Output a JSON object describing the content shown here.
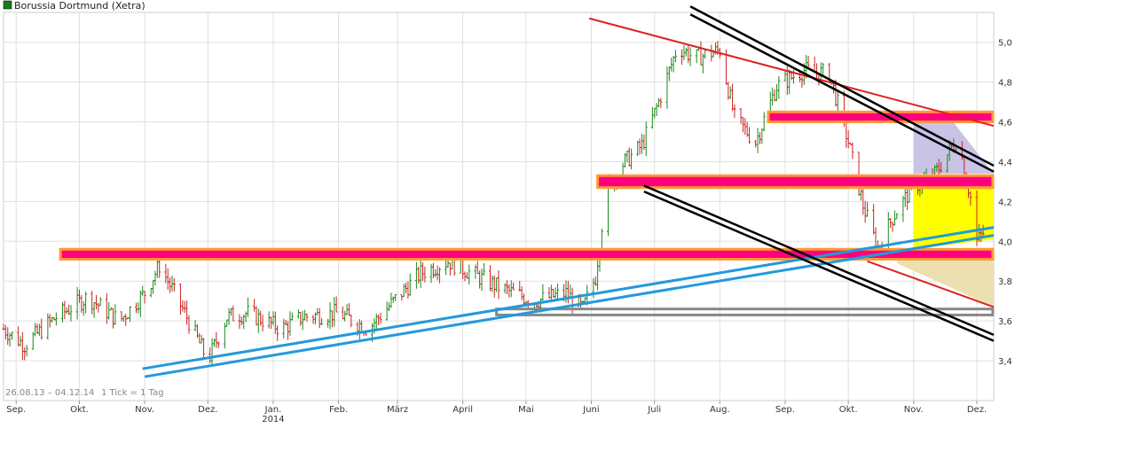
{
  "chart_data": {
    "type": "candlestick",
    "title": "",
    "legend": {
      "label": "Borussia Dortmund (Xetra)",
      "color": "#1a7a1a",
      "placement": "top-left"
    },
    "footer": {
      "range": "26.08.13 – 04.12.14",
      "tick_info": "1 Tick = 1 Tag"
    },
    "grid": true,
    "yaxis": {
      "side": "right",
      "ticks": [
        3.4,
        3.6,
        3.8,
        4.0,
        4.2,
        4.4,
        4.6,
        4.8,
        5.0
      ],
      "tick_labels": [
        "3,4",
        "3,6",
        "3,8",
        "4,0",
        "4,2",
        "4,4",
        "4,6",
        "4,8",
        "5,0"
      ],
      "ylim": [
        3.2,
        5.15
      ]
    },
    "xaxis": {
      "xlim": [
        "2013-08-26",
        "2014-12-09"
      ],
      "ticks": [
        {
          "date": "2013-09-01",
          "label": "Sep."
        },
        {
          "date": "2013-10-01",
          "label": "Okt."
        },
        {
          "date": "2013-11-01",
          "label": "Nov."
        },
        {
          "date": "2013-12-01",
          "label": "Dez."
        },
        {
          "date": "2014-01-01",
          "label": "Jan.",
          "sublabel": "2014"
        },
        {
          "date": "2014-02-01",
          "label": "Feb."
        },
        {
          "date": "2014-03-01",
          "label": "März"
        },
        {
          "date": "2014-04-01",
          "label": "April"
        },
        {
          "date": "2014-05-01",
          "label": "Mai"
        },
        {
          "date": "2014-06-01",
          "label": "Juni"
        },
        {
          "date": "2014-07-01",
          "label": "Juli"
        },
        {
          "date": "2014-08-01",
          "label": "Aug."
        },
        {
          "date": "2014-09-01",
          "label": "Sep."
        },
        {
          "date": "2014-10-01",
          "label": "Okt."
        },
        {
          "date": "2014-11-01",
          "label": "Nov."
        },
        {
          "date": "2014-12-01",
          "label": "Dez."
        }
      ]
    },
    "colors": {
      "up": "#1a8a1a",
      "down": "#cc2222",
      "grid": "#e0e0e0"
    },
    "price_path": [
      [
        "2013-08-26",
        3.56
      ],
      [
        "2013-09-05",
        3.48
      ],
      [
        "2013-09-20",
        3.62
      ],
      [
        "2013-10-05",
        3.72
      ],
      [
        "2013-10-20",
        3.6
      ],
      [
        "2013-11-01",
        3.74
      ],
      [
        "2013-11-08",
        3.88
      ],
      [
        "2013-11-20",
        3.64
      ],
      [
        "2013-12-01",
        3.4
      ],
      [
        "2013-12-10",
        3.62
      ],
      [
        "2013-12-20",
        3.64
      ],
      [
        "2014-01-05",
        3.56
      ],
      [
        "2014-01-15",
        3.62
      ],
      [
        "2014-02-01",
        3.64
      ],
      [
        "2014-02-15",
        3.56
      ],
      [
        "2014-03-01",
        3.72
      ],
      [
        "2014-03-12",
        3.84
      ],
      [
        "2014-03-25",
        3.9
      ],
      [
        "2014-04-05",
        3.84
      ],
      [
        "2014-04-20",
        3.76
      ],
      [
        "2014-05-05",
        3.7
      ],
      [
        "2014-05-20",
        3.74
      ],
      [
        "2014-05-28",
        3.66
      ],
      [
        "2014-06-03",
        3.82
      ],
      [
        "2014-06-08",
        4.26
      ],
      [
        "2014-06-15",
        4.38
      ],
      [
        "2014-06-25",
        4.48
      ],
      [
        "2014-07-03",
        4.7
      ],
      [
        "2014-07-12",
        4.98
      ],
      [
        "2014-07-20",
        4.92
      ],
      [
        "2014-08-01",
        4.96
      ],
      [
        "2014-08-08",
        4.62
      ],
      [
        "2014-08-18",
        4.5
      ],
      [
        "2014-08-28",
        4.78
      ],
      [
        "2014-09-10",
        4.86
      ],
      [
        "2014-09-22",
        4.84
      ],
      [
        "2014-10-01",
        4.5
      ],
      [
        "2014-10-08",
        4.18
      ],
      [
        "2014-10-15",
        3.96
      ],
      [
        "2014-10-22",
        4.12
      ],
      [
        "2014-11-01",
        4.28
      ],
      [
        "2014-11-10",
        4.32
      ],
      [
        "2014-11-22",
        4.52
      ],
      [
        "2014-11-28",
        4.22
      ],
      [
        "2014-12-01",
        4.0
      ],
      [
        "2014-12-04",
        4.04
      ]
    ],
    "annotations": {
      "zones": [
        {
          "name": "support-zone-4-0",
          "x1": "2013-09-22",
          "x2": "2014-12-09",
          "y1": 3.91,
          "y2": 3.96,
          "fill": "#ff007f",
          "stroke": "#ff9933"
        },
        {
          "name": "resistance-zone-4-3",
          "x1": "2014-06-04",
          "x2": "2014-12-09",
          "y1": 4.27,
          "y2": 4.33,
          "fill": "#ff007f",
          "stroke": "#ff9933"
        },
        {
          "name": "resistance-zone-4-6",
          "x1": "2014-08-24",
          "x2": "2014-12-09",
          "y1": 4.6,
          "y2": 4.65,
          "fill": "#ff007f",
          "stroke": "#ff9933"
        },
        {
          "name": "support-box-3-65",
          "x1": "2014-04-17",
          "x2": "2014-12-09",
          "y1": 3.63,
          "y2": 3.66,
          "fill": "none",
          "stroke": "#888888"
        }
      ],
      "shaded": [
        {
          "name": "lavender-area",
          "points": [
            [
              "2014-11-01",
              4.61
            ],
            [
              "2014-11-19",
              4.61
            ],
            [
              "2014-12-09",
              4.34
            ],
            [
              "2014-11-01",
              4.34
            ]
          ],
          "fill": "#c9c3e6"
        },
        {
          "name": "yellow-area",
          "points": [
            [
              "2014-11-01",
              4.27
            ],
            [
              "2014-12-09",
              4.27
            ],
            [
              "2014-12-09",
              4.01
            ],
            [
              "2014-11-01",
              3.96
            ]
          ],
          "fill": "#ffff00"
        },
        {
          "name": "khaki-area",
          "points": [
            [
              "2014-10-24",
              3.91
            ],
            [
              "2014-12-09",
              3.91
            ],
            [
              "2014-12-09",
              3.67
            ],
            [
              "2014-10-24",
              3.89
            ]
          ],
          "fill": "#ede0b0"
        }
      ],
      "trendlines": [
        {
          "name": "uptrend-blue-1",
          "points": [
            [
              "2013-10-31",
              3.36
            ],
            [
              "2014-12-09",
              4.07
            ]
          ],
          "color": "#2299dd",
          "width": 3
        },
        {
          "name": "uptrend-blue-2",
          "points": [
            [
              "2013-11-01",
              3.32
            ],
            [
              "2014-12-09",
              4.03
            ]
          ],
          "color": "#2299dd",
          "width": 3
        },
        {
          "name": "downtrend-red-top",
          "points": [
            [
              "2014-05-31",
              5.12
            ],
            [
              "2014-12-09",
              4.58
            ]
          ],
          "color": "#dd2222",
          "width": 2
        },
        {
          "name": "downtrend-red-low",
          "points": [
            [
              "2014-10-10",
              3.9
            ],
            [
              "2014-12-09",
              3.67
            ]
          ],
          "color": "#dd2222",
          "width": 2
        },
        {
          "name": "channel-black-top-1",
          "points": [
            [
              "2014-07-18",
              5.18
            ],
            [
              "2014-12-09",
              4.38
            ]
          ],
          "color": "#000000",
          "width": 2.5
        },
        {
          "name": "channel-black-top-2",
          "points": [
            [
              "2014-07-18",
              5.14
            ],
            [
              "2014-12-09",
              4.35
            ]
          ],
          "color": "#000000",
          "width": 2.5
        },
        {
          "name": "channel-black-low-1",
          "points": [
            [
              "2014-06-26",
              4.28
            ],
            [
              "2014-12-09",
              3.53
            ]
          ],
          "color": "#000000",
          "width": 2.5
        },
        {
          "name": "channel-black-low-2",
          "points": [
            [
              "2014-06-26",
              4.25
            ],
            [
              "2014-12-09",
              3.5
            ]
          ],
          "color": "#000000",
          "width": 2.5
        }
      ]
    }
  }
}
